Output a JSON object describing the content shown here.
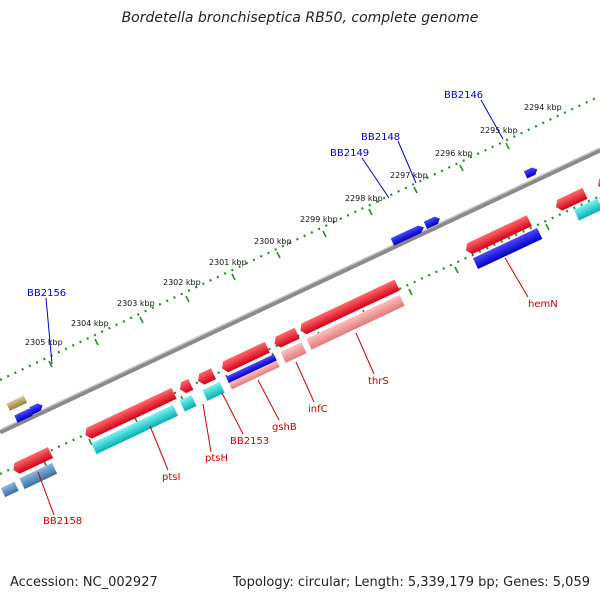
{
  "title": "Bordetella bronchiseptica RB50, complete genome",
  "footer": {
    "accession": "Accession: NC_002927",
    "topology": "Topology: circular; Length: 5,339,179 bp; Genes: 5,059"
  },
  "colors": {
    "backbone": "#888888",
    "tick_dots": "#2a8a2a",
    "forward_cds": "#e8001b",
    "reverse_cds": "#00c8c8",
    "pale_red_cds": "#f09090",
    "blue_gene": "#0000dd",
    "steel_blue_gene": "#4a82b8",
    "olive_gene": "#b0a060",
    "grey_gene": "#666666",
    "forward_label": "#cc0000",
    "reverse_label": "#0000cc"
  },
  "scale": {
    "unit": "kbp",
    "ticks": [
      "2294 kbp",
      "2295 kbp",
      "2296 kbp",
      "2297 kbp",
      "2298 kbp",
      "2299 kbp",
      "2300 kbp",
      "2301 kbp",
      "2302 kbp",
      "2303 kbp",
      "2304 kbp",
      "2305 kbp"
    ]
  },
  "upper_labels": [
    "BB2146",
    "BB2148",
    "BB2149",
    "BB2156"
  ],
  "lower_labels": [
    "hemN",
    "thrS",
    "infC",
    "gshB",
    "BB2153",
    "ptsH",
    "ptsI",
    "BB2158"
  ]
}
